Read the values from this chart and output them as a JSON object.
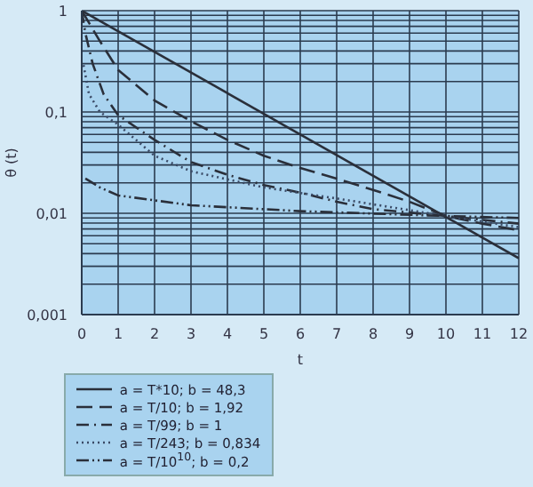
{
  "chart_data": {
    "type": "line",
    "ylabel": "θ (t)",
    "xlabel": "t",
    "log": "y",
    "grid": true,
    "legend": "bottom",
    "marker": "none",
    "xlim": [
      0,
      12
    ],
    "xticks": [
      0,
      1,
      2,
      3,
      4,
      5,
      6,
      7,
      8,
      9,
      10,
      11,
      12
    ],
    "ylim": [
      0.001,
      1
    ],
    "yticks": [
      {
        "value": 0.001,
        "label": "0,001"
      },
      {
        "value": 0.002,
        "label": null
      },
      {
        "value": 0.003,
        "label": null
      },
      {
        "value": 0.004,
        "label": null
      },
      {
        "value": 0.005,
        "label": null
      },
      {
        "value": 0.006,
        "label": null
      },
      {
        "value": 0.007,
        "label": null
      },
      {
        "value": 0.008,
        "label": null
      },
      {
        "value": 0.009,
        "label": null
      },
      {
        "value": 0.01,
        "label": "0,01"
      },
      {
        "value": 0.02,
        "label": null
      },
      {
        "value": 0.03,
        "label": null
      },
      {
        "value": 0.04,
        "label": null
      },
      {
        "value": 0.05,
        "label": null
      },
      {
        "value": 0.06,
        "label": null
      },
      {
        "value": 0.07,
        "label": null
      },
      {
        "value": 0.08,
        "label": null
      },
      {
        "value": 0.09,
        "label": null
      },
      {
        "value": 0.1,
        "label": "0,1"
      },
      {
        "value": 0.2,
        "label": null
      },
      {
        "value": 0.3,
        "label": null
      },
      {
        "value": 0.4,
        "label": null
      },
      {
        "value": 0.5,
        "label": null
      },
      {
        "value": 0.6,
        "label": null
      },
      {
        "value": 0.7,
        "label": null
      },
      {
        "value": 0.8,
        "label": null
      },
      {
        "value": 0.9,
        "label": null
      },
      {
        "value": 1,
        "label": "1"
      }
    ],
    "series": [
      {
        "name": "a = T*10; b = 48,3",
        "color": "#2a2f3a",
        "line_style": "solid",
        "x": [
          0,
          12
        ],
        "values": [
          1,
          0.0036
        ]
      },
      {
        "name": "a = T/10; b = 1,92",
        "color": "#2a2f3a",
        "line_style": "dashed",
        "x": [
          0,
          0.5,
          1,
          2,
          3,
          4,
          5,
          6,
          7,
          8,
          9,
          10,
          11,
          12
        ],
        "values": [
          1,
          0.5,
          0.26,
          0.13,
          0.081,
          0.053,
          0.037,
          0.028,
          0.022,
          0.017,
          0.013,
          0.0094,
          0.0079,
          0.0068
        ]
      },
      {
        "name": "a = T/99; b = 1",
        "color": "#2a2f3a",
        "line_style": "dashdot",
        "x": [
          0,
          0.1,
          0.3,
          0.6,
          1,
          2,
          3,
          4,
          5,
          6,
          7,
          8,
          10,
          12
        ],
        "values": [
          1,
          0.6,
          0.3,
          0.15,
          0.093,
          0.053,
          0.032,
          0.024,
          0.019,
          0.016,
          0.013,
          0.011,
          0.0094,
          0.0079
        ]
      },
      {
        "name": "a = T/243; b = 0,834",
        "color": "#3a4a66",
        "line_style": "dotted",
        "x": [
          0.05,
          0.2,
          0.5,
          1,
          2,
          3,
          5,
          7,
          10,
          12
        ],
        "values": [
          0.29,
          0.15,
          0.1,
          0.075,
          0.037,
          0.026,
          0.018,
          0.014,
          0.0094,
          0.0073
        ]
      },
      {
        "name": "a = T/10$^{10}$; b = 0,2",
        "color": "#2a2f3a",
        "line_style": "dashdotdot",
        "x": [
          0.1,
          0.5,
          1,
          3,
          6,
          10,
          12
        ],
        "values": [
          0.022,
          0.018,
          0.015,
          0.012,
          0.0105,
          0.0094,
          0.009
        ]
      }
    ]
  }
}
